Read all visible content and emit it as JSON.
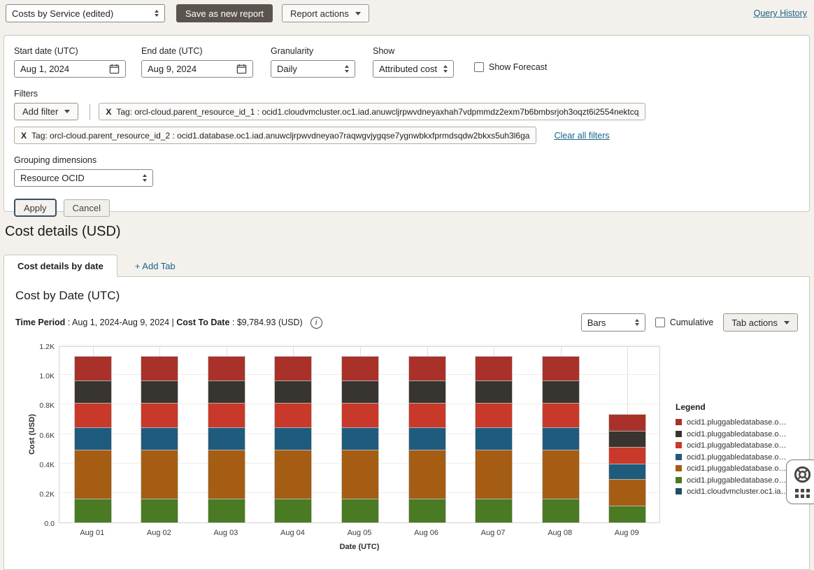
{
  "topbar": {
    "report_select": "Costs by Service (edited)",
    "save_button": "Save as new report",
    "report_actions_button": "Report actions",
    "query_history_link": "Query History"
  },
  "filters_panel": {
    "start_date": {
      "label": "Start date (UTC)",
      "value": "Aug 1, 2024"
    },
    "end_date": {
      "label": "End date (UTC)",
      "value": "Aug 9, 2024"
    },
    "granularity": {
      "label": "Granularity",
      "value": "Daily"
    },
    "show": {
      "label": "Show",
      "value": "Attributed cost"
    },
    "show_forecast_label": "Show Forecast",
    "filters_label": "Filters",
    "add_filter_button": "Add filter",
    "tag_chips": [
      {
        "remove_label": "X",
        "text": "Tag: orcl-cloud.parent_resource_id_1 : ocid1.cloudvmcluster.oc1.iad.anuwcljrpwvdneyaxhah7vdpmmdz2exm7b6bmbsrjoh3oqzt6i2554nektcq"
      },
      {
        "remove_label": "X",
        "text": "Tag: orcl-cloud.parent_resource_id_2 : ocid1.database.oc1.iad.anuwcljrpwvdneyao7raqwgvjygqse7ygnwbkxfprmdsqdw2bkxs5uh3l6ga"
      }
    ],
    "clear_all_link": "Clear all filters",
    "grouping": {
      "label": "Grouping dimensions",
      "value": "Resource OCID"
    },
    "apply_button": "Apply",
    "cancel_button": "Cancel"
  },
  "cost_details": {
    "heading": "Cost details (USD)",
    "tabs": [
      {
        "label": "Cost details by date",
        "active": true
      },
      {
        "label": "+ Add Tab",
        "active": false
      }
    ],
    "chart_title": "Cost by Date (UTC)",
    "summary": {
      "time_period_label": "Time Period",
      "time_period_value": " : Aug 1, 2024-Aug 9, 2024 | ",
      "cost_to_date_label": "Cost To Date",
      "cost_to_date_value": " : $9,784.93 (USD)",
      "info_icon_glyph": "i"
    },
    "controls": {
      "chart_type_select": "Bars",
      "cumulative_label": "Cumulative",
      "tab_actions_button": "Tab actions"
    }
  },
  "chart_data": {
    "type": "bar",
    "stacked": true,
    "title": "Cost by Date (UTC)",
    "xlabel": "Date (UTC)",
    "ylabel": "Cost (USD)",
    "ylim": [
      0,
      1.2
    ],
    "ytick_labels": [
      "0.0",
      "0.2K",
      "0.4K",
      "0.6K",
      "0.8K",
      "1.0K",
      "1.2K"
    ],
    "grid": true,
    "legend_title": "Legend",
    "legend_position": "right",
    "categories": [
      "Aug 01",
      "Aug 02",
      "Aug 03",
      "Aug 04",
      "Aug 05",
      "Aug 06",
      "Aug 07",
      "Aug 08",
      "Aug 09"
    ],
    "series": [
      {
        "name": "ocid1.pluggabledatabase.o…",
        "color": "#a9312a",
        "values": [
          0.16,
          0.16,
          0.16,
          0.16,
          0.16,
          0.16,
          0.16,
          0.16,
          0.11
        ]
      },
      {
        "name": "ocid1.pluggabledatabase.o…",
        "color": "#38342f",
        "values": [
          0.155,
          0.155,
          0.155,
          0.155,
          0.155,
          0.155,
          0.155,
          0.155,
          0.11
        ]
      },
      {
        "name": "ocid1.pluggabledatabase.o…",
        "color": "#c9392a",
        "values": [
          0.165,
          0.165,
          0.165,
          0.165,
          0.165,
          0.165,
          0.165,
          0.165,
          0.11
        ]
      },
      {
        "name": "ocid1.pluggabledatabase.o…",
        "color": "#1f5b7d",
        "values": [
          0.15,
          0.15,
          0.15,
          0.15,
          0.15,
          0.15,
          0.15,
          0.15,
          0.105
        ]
      },
      {
        "name": "ocid1.pluggabledatabase.o…",
        "color": "#a55d13",
        "values": [
          0.335,
          0.335,
          0.335,
          0.335,
          0.335,
          0.335,
          0.335,
          0.335,
          0.18
        ]
      },
      {
        "name": "ocid1.pluggabledatabase.o…",
        "color": "#4a7a23",
        "values": [
          0.16,
          0.16,
          0.16,
          0.16,
          0.16,
          0.16,
          0.16,
          0.16,
          0.115
        ]
      },
      {
        "name": "ocid1.cloudvmcluster.oc1.ia…",
        "color": "#1d4e66",
        "values": [
          0,
          0,
          0,
          0,
          0,
          0,
          0,
          0,
          0
        ]
      }
    ],
    "stack_order_bottom_to_top": [
      5,
      4,
      3,
      2,
      1,
      0,
      6
    ]
  }
}
